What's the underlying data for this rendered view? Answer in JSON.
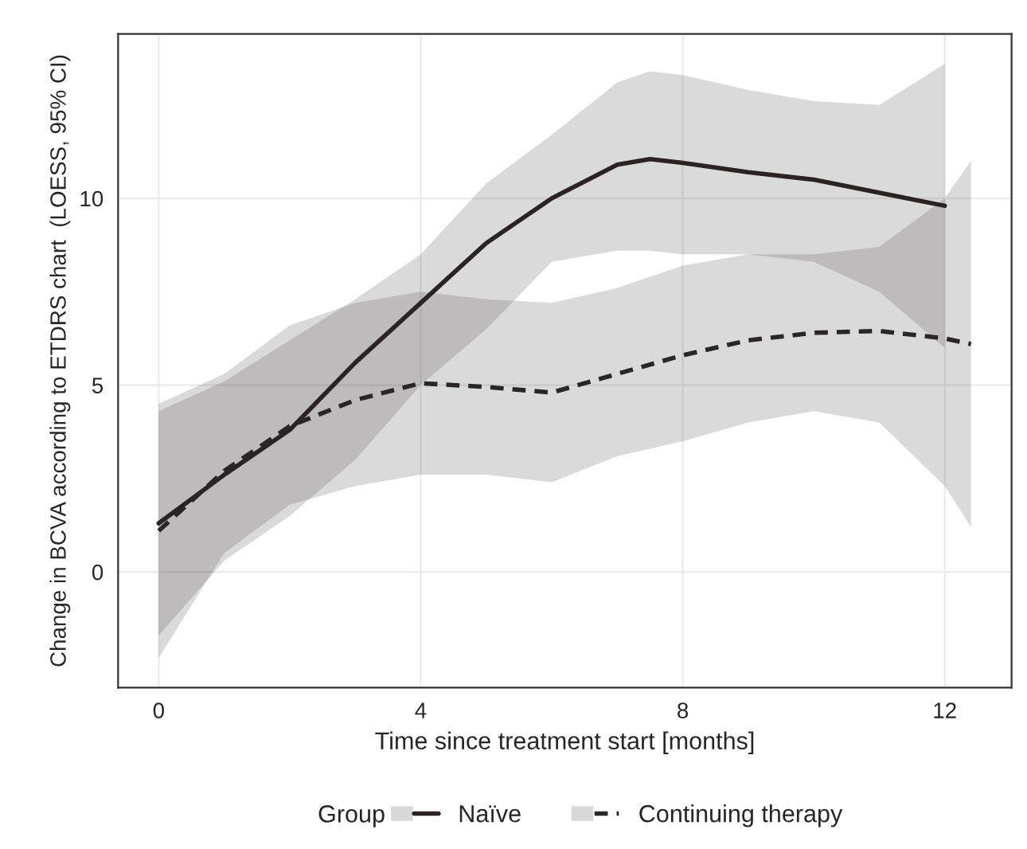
{
  "chart_data": {
    "type": "line",
    "xlabel": "Time since treatment start [months]",
    "ylabel": "Change in BCVA according to ETDRS chart  (LOESS, 95% CI)",
    "legend_title": "Group",
    "xlim": [
      -0.62,
      13.02
    ],
    "ylim": [
      -3.1,
      14.4
    ],
    "xticks": [
      0,
      4,
      8,
      12
    ],
    "yticks": [
      0,
      5,
      10
    ],
    "grid": true,
    "legend": "bottom",
    "series": [
      {
        "name": "Naïve",
        "color": "#2b2323",
        "line_style": "solid",
        "x": [
          0,
          1,
          2,
          3,
          4,
          5,
          6,
          7,
          7.5,
          8,
          9,
          10,
          11,
          12
        ],
        "values": [
          1.3,
          2.6,
          3.8,
          5.6,
          7.2,
          8.8,
          10.0,
          10.9,
          11.05,
          10.95,
          10.7,
          10.5,
          10.15,
          9.8
        ],
        "lower": [
          -1.7,
          0.3,
          1.5,
          3.0,
          5.0,
          6.5,
          8.3,
          8.6,
          8.6,
          8.5,
          8.5,
          8.3,
          7.5,
          6.0
        ],
        "upper": [
          4.3,
          5.1,
          6.2,
          7.3,
          8.5,
          10.4,
          11.7,
          13.1,
          13.4,
          13.3,
          12.9,
          12.6,
          12.5,
          13.6
        ]
      },
      {
        "name": "Continuing therapy",
        "color": "#2a2626",
        "line_style": "dashed",
        "x": [
          0,
          1,
          2,
          3,
          4,
          5,
          6,
          7,
          8,
          9,
          10,
          11,
          12,
          12.4
        ],
        "values": [
          1.1,
          2.7,
          3.9,
          4.6,
          5.05,
          4.95,
          4.8,
          5.3,
          5.8,
          6.2,
          6.4,
          6.45,
          6.25,
          6.1
        ],
        "lower": [
          -2.3,
          0.5,
          1.8,
          2.3,
          2.6,
          2.6,
          2.4,
          3.1,
          3.5,
          4.0,
          4.3,
          4.0,
          2.3,
          1.2
        ],
        "upper": [
          4.5,
          5.3,
          6.6,
          7.2,
          7.5,
          7.3,
          7.2,
          7.6,
          8.2,
          8.5,
          8.5,
          8.7,
          10.0,
          11.0
        ]
      }
    ]
  }
}
